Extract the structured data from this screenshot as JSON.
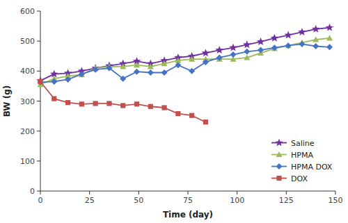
{
  "chart_data": {
    "type": "line",
    "xlabel": "Time (day)",
    "ylabel": "BW (g)",
    "xlim": [
      0,
      150
    ],
    "ylim": [
      0,
      600
    ],
    "xticks": [
      0,
      25,
      50,
      75,
      100,
      125,
      150
    ],
    "yticks": [
      0,
      100,
      200,
      300,
      400,
      500,
      600
    ],
    "grid": false,
    "legend": "lower right",
    "series": [
      {
        "name": "Saline",
        "color": "#7030a0",
        "marker": "star",
        "x": [
          0,
          7,
          14,
          21,
          28,
          35,
          42,
          49,
          56,
          63,
          70,
          77,
          84,
          91,
          98,
          105,
          112,
          119,
          126,
          133,
          140,
          147
        ],
        "values": [
          368,
          390,
          393,
          400,
          410,
          418,
          425,
          433,
          425,
          435,
          445,
          450,
          460,
          470,
          478,
          488,
          498,
          510,
          520,
          530,
          540,
          545
        ]
      },
      {
        "name": "HPMA",
        "color": "#9bbb59",
        "marker": "triangle",
        "x": [
          0,
          7,
          14,
          21,
          28,
          35,
          42,
          49,
          56,
          63,
          70,
          77,
          84,
          91,
          98,
          105,
          112,
          119,
          126,
          133,
          140,
          147
        ],
        "values": [
          355,
          375,
          383,
          388,
          410,
          415,
          415,
          420,
          415,
          425,
          435,
          440,
          440,
          440,
          440,
          445,
          460,
          475,
          485,
          495,
          505,
          510
        ]
      },
      {
        "name": "HPMA DOX",
        "color": "#4472c4",
        "marker": "diamond",
        "x": [
          0,
          7,
          14,
          21,
          28,
          35,
          42,
          49,
          56,
          63,
          70,
          77,
          84,
          91,
          98,
          105,
          112,
          119,
          126,
          133,
          140,
          147
        ],
        "values": [
          363,
          365,
          372,
          390,
          405,
          410,
          375,
          398,
          395,
          395,
          420,
          400,
          430,
          445,
          455,
          465,
          470,
          478,
          485,
          490,
          483,
          480
        ]
      },
      {
        "name": "DOX",
        "color": "#c0504d",
        "marker": "square",
        "x": [
          0,
          7,
          14,
          21,
          28,
          35,
          42,
          49,
          56,
          63,
          70,
          77,
          84
        ],
        "values": [
          365,
          308,
          295,
          290,
          292,
          292,
          285,
          290,
          282,
          278,
          258,
          252,
          230
        ]
      }
    ]
  }
}
